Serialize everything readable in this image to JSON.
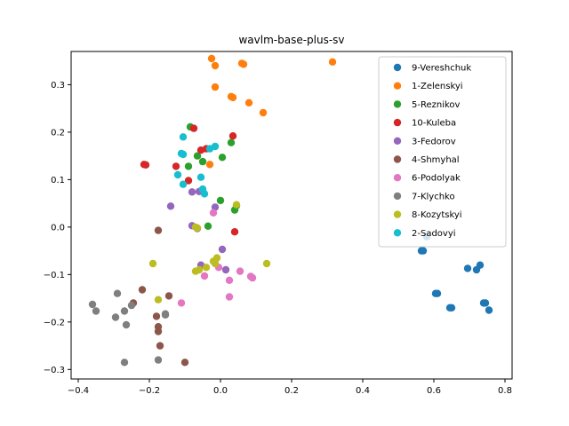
{
  "chart_data": {
    "type": "scatter",
    "title": "wavlm-base-plus-sv",
    "xlabel": "",
    "ylabel": "",
    "xlim": [
      -0.42,
      0.82
    ],
    "ylim": [
      -0.32,
      0.37
    ],
    "xticks": [
      -0.4,
      -0.2,
      0.0,
      0.2,
      0.4,
      0.6,
      0.8
    ],
    "xtick_labels": [
      "−0.4",
      "−0.2",
      "0.0",
      "0.2",
      "0.4",
      "0.6",
      "0.8"
    ],
    "yticks": [
      -0.3,
      -0.2,
      -0.1,
      0.0,
      0.1,
      0.2,
      0.3
    ],
    "ytick_labels": [
      "−0.3",
      "−0.2",
      "−0.1",
      "0.0",
      "0.1",
      "0.2",
      "0.3"
    ],
    "grid": false,
    "legend_position": "top-right",
    "series": [
      {
        "name": "9-Vereshchuk",
        "color": "#1f77b4",
        "points": [
          [
            0.58,
            -0.02
          ],
          [
            0.57,
            -0.05
          ],
          [
            0.565,
            -0.05
          ],
          [
            0.61,
            -0.14
          ],
          [
            0.605,
            -0.14
          ],
          [
            0.65,
            -0.17
          ],
          [
            0.645,
            -0.17
          ],
          [
            0.695,
            -0.087
          ],
          [
            0.72,
            -0.09
          ],
          [
            0.73,
            -0.08
          ],
          [
            0.745,
            -0.16
          ],
          [
            0.755,
            -0.175
          ],
          [
            0.74,
            -0.16
          ]
        ]
      },
      {
        "name": "1-Zelenskyi",
        "color": "#ff7f0e",
        "points": [
          [
            -0.025,
            0.355
          ],
          [
            -0.015,
            0.34
          ],
          [
            0.06,
            0.345
          ],
          [
            0.065,
            0.343
          ],
          [
            0.315,
            0.348
          ],
          [
            -0.015,
            0.295
          ],
          [
            0.035,
            0.273
          ],
          [
            0.03,
            0.275
          ],
          [
            0.08,
            0.262
          ],
          [
            0.12,
            0.241
          ],
          [
            -0.03,
            0.132
          ]
        ]
      },
      {
        "name": "5-Reznikov",
        "color": "#2ca02c",
        "points": [
          [
            -0.085,
            0.211
          ],
          [
            -0.065,
            0.15
          ],
          [
            -0.05,
            0.138
          ],
          [
            -0.09,
            0.128
          ],
          [
            0.03,
            0.178
          ],
          [
            0.005,
            0.147
          ],
          [
            0.0,
            0.056
          ],
          [
            0.04,
            0.036
          ],
          [
            -0.035,
            0.002
          ],
          [
            0.045,
            0.045
          ]
        ]
      },
      {
        "name": "10-Kuleba",
        "color": "#d62728",
        "points": [
          [
            -0.215,
            0.132
          ],
          [
            -0.21,
            0.131
          ],
          [
            -0.125,
            0.128
          ],
          [
            -0.075,
            0.208
          ],
          [
            -0.055,
            0.162
          ],
          [
            -0.09,
            0.098
          ],
          [
            -0.04,
            0.165
          ],
          [
            0.035,
            0.192
          ],
          [
            0.04,
            -0.01
          ]
        ]
      },
      {
        "name": "3-Fedorov",
        "color": "#9467bd",
        "points": [
          [
            -0.14,
            0.044
          ],
          [
            -0.08,
            0.074
          ],
          [
            -0.06,
            0.075
          ],
          [
            -0.08,
            0.003
          ],
          [
            0.005,
            -0.047
          ],
          [
            -0.055,
            -0.08
          ],
          [
            0.015,
            -0.09
          ],
          [
            -0.015,
            0.042
          ],
          [
            -0.065,
            -0.003
          ]
        ]
      },
      {
        "name": "4-Shmyhal",
        "color": "#8c564b",
        "points": [
          [
            -0.175,
            -0.007
          ],
          [
            -0.22,
            -0.132
          ],
          [
            -0.245,
            -0.16
          ],
          [
            -0.18,
            -0.188
          ],
          [
            -0.175,
            -0.21
          ],
          [
            -0.175,
            -0.22
          ],
          [
            -0.17,
            -0.25
          ],
          [
            -0.145,
            -0.145
          ],
          [
            -0.1,
            -0.285
          ]
        ]
      },
      {
        "name": "6-Podolyak",
        "color": "#e377c2",
        "points": [
          [
            -0.11,
            -0.16
          ],
          [
            -0.045,
            -0.103
          ],
          [
            -0.02,
            0.03
          ],
          [
            0.025,
            -0.112
          ],
          [
            0.055,
            -0.093
          ],
          [
            0.085,
            -0.104
          ],
          [
            0.09,
            -0.107
          ],
          [
            0.025,
            -0.147
          ],
          [
            -0.005,
            -0.085
          ]
        ]
      },
      {
        "name": "7-Klychko",
        "color": "#7f7f7f",
        "points": [
          [
            -0.36,
            -0.163
          ],
          [
            -0.35,
            -0.177
          ],
          [
            -0.29,
            -0.14
          ],
          [
            -0.295,
            -0.19
          ],
          [
            -0.27,
            -0.177
          ],
          [
            -0.265,
            -0.206
          ],
          [
            -0.25,
            -0.165
          ],
          [
            -0.27,
            -0.285
          ],
          [
            -0.175,
            -0.28
          ],
          [
            -0.155,
            -0.185
          ],
          [
            -0.155,
            -0.183
          ]
        ]
      },
      {
        "name": "8-Kozytskyi",
        "color": "#bcbd22",
        "points": [
          [
            -0.19,
            -0.077
          ],
          [
            -0.175,
            -0.153
          ],
          [
            -0.07,
            0.0
          ],
          [
            -0.065,
            -0.002
          ],
          [
            -0.07,
            -0.093
          ],
          [
            -0.06,
            -0.09
          ],
          [
            -0.04,
            -0.085
          ],
          [
            -0.015,
            -0.077
          ],
          [
            -0.02,
            -0.072
          ],
          [
            -0.01,
            -0.065
          ],
          [
            0.045,
            0.047
          ],
          [
            0.13,
            -0.077
          ]
        ]
      },
      {
        "name": "2-Sadovyi",
        "color": "#17becf",
        "points": [
          [
            -0.105,
            0.19
          ],
          [
            -0.11,
            0.155
          ],
          [
            -0.105,
            0.153
          ],
          [
            -0.12,
            0.11
          ],
          [
            -0.105,
            0.09
          ],
          [
            -0.055,
            0.105
          ],
          [
            -0.05,
            0.08
          ],
          [
            -0.045,
            0.07
          ],
          [
            -0.03,
            0.165
          ],
          [
            -0.015,
            0.17
          ]
        ]
      }
    ]
  }
}
